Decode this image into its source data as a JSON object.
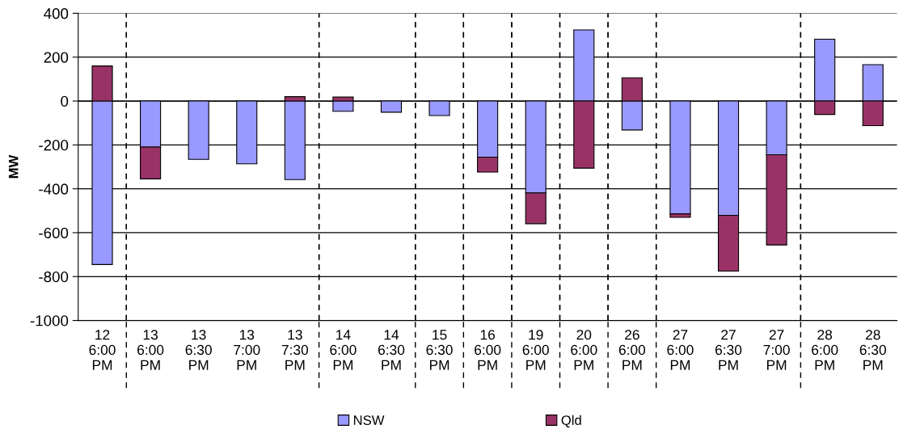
{
  "chart_data": {
    "type": "bar",
    "stacked": true,
    "ylabel": "MW",
    "categories": [
      "12\n6:00\nPM",
      "13\n6:00\nPM",
      "13\n6:30\nPM",
      "13\n7:00\nPM",
      "13\n7:30\nPM",
      "14\n6:00\nPM",
      "14\n6:30\nPM",
      "15\n6:30\nPM",
      "16\n6:00\nPM",
      "19\n6:00\nPM",
      "20\n6:00\nPM",
      "26\n6:00\nPM",
      "27\n6:00\nPM",
      "27\n6:30\nPM",
      "27\n7:00\nPM",
      "28\n6:00\nPM",
      "28\n6:30\nPM"
    ],
    "series": [
      {
        "name": "NSW",
        "color": "#9999ff",
        "values": [
          -745,
          -210,
          -266,
          -286,
          -358,
          -47,
          -51,
          -66,
          -256,
          -419,
          324,
          -132,
          -514,
          -521,
          -245,
          282,
          166
        ]
      },
      {
        "name": "Qld",
        "color": "#993366",
        "values": [
          160,
          -145,
          null,
          null,
          20,
          18,
          null,
          null,
          -68,
          -140,
          -306,
          106,
          -16,
          -254,
          -411,
          -61,
          -112
        ]
      }
    ],
    "ylim": [
      -1000,
      400
    ],
    "yticks": [
      -1000,
      -800,
      -600,
      -400,
      -200,
      0,
      200,
      400
    ],
    "grid": "y",
    "legend": "bottom"
  }
}
